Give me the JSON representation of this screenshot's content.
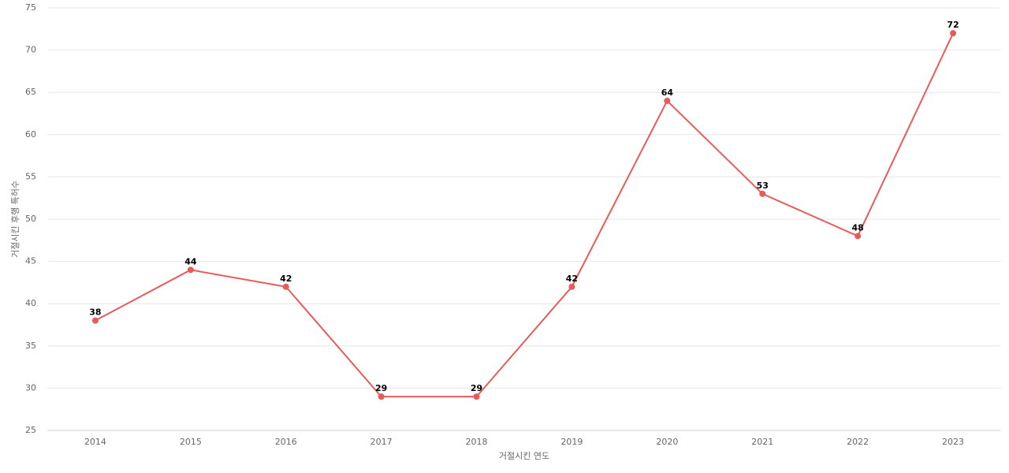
{
  "chart_data": {
    "type": "line",
    "x_label": "거절시킨 연도",
    "y_label": "거절시킨 후행 특허수",
    "categories": [
      "2014",
      "2015",
      "2016",
      "2017",
      "2018",
      "2019",
      "2020",
      "2021",
      "2022",
      "2023"
    ],
    "series": [
      {
        "color": "#e85b5b",
        "values": [
          38,
          44,
          42,
          29,
          29,
          42,
          64,
          53,
          48,
          72
        ]
      }
    ],
    "ylim": [
      25,
      75
    ],
    "yticks": [
      25,
      30,
      35,
      40,
      45,
      50,
      55,
      60,
      65,
      70,
      75
    ],
    "grid": true
  }
}
